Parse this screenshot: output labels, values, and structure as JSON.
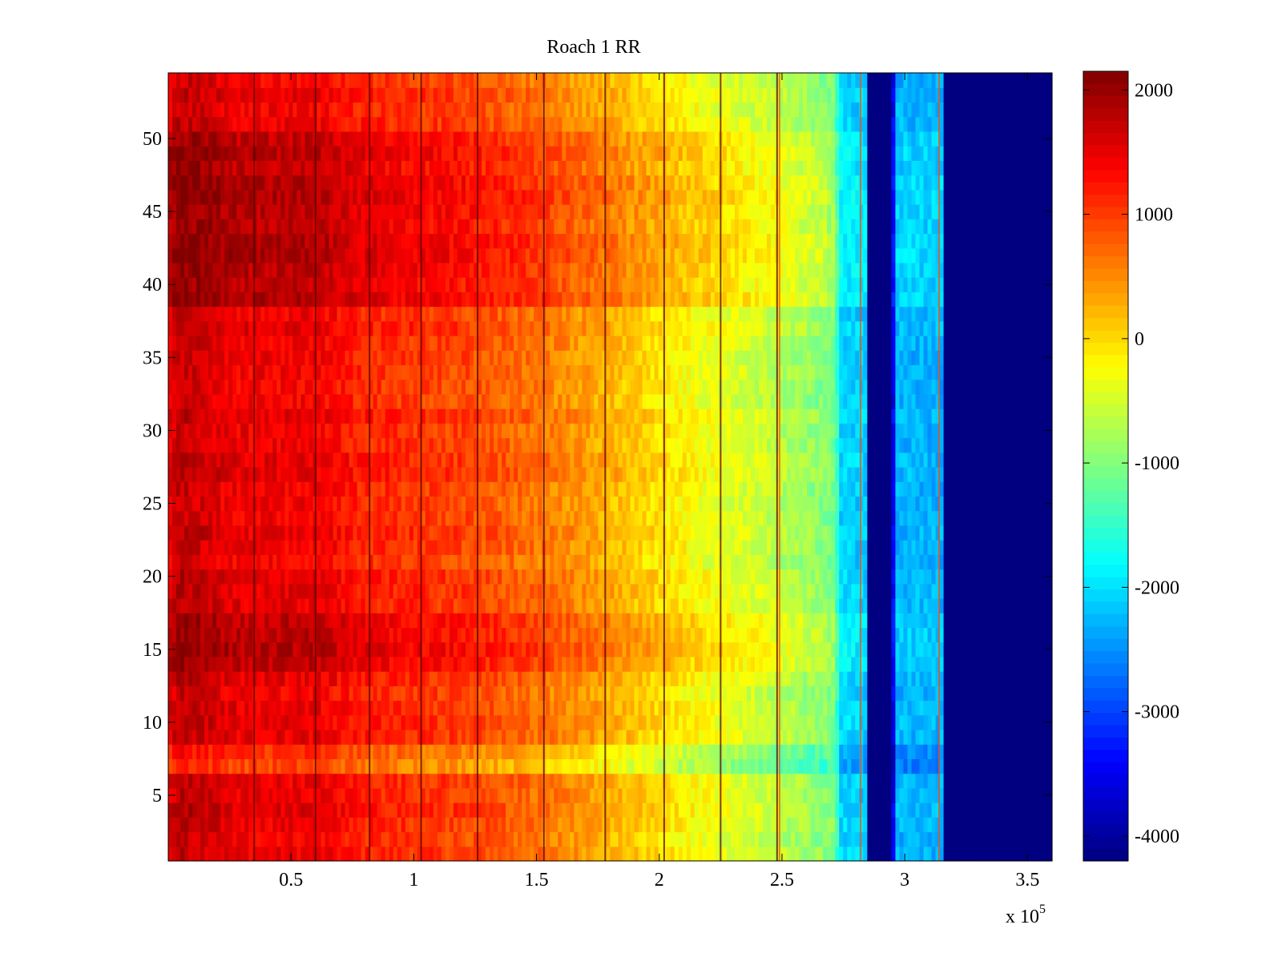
{
  "chart_data": {
    "type": "heatmap",
    "title": "Roach 1 RR",
    "xlabel": "",
    "ylabel": "",
    "x_exponent_label": "x 10",
    "x_exponent_power": "5",
    "xlim": [
      0,
      3.6
    ],
    "ylim": [
      0.5,
      54.5
    ],
    "x_ticks": [
      0.5,
      1,
      1.5,
      2,
      2.5,
      3,
      3.5
    ],
    "x_tick_labels": [
      "0.5",
      "1",
      "1.5",
      "2",
      "2.5",
      "3",
      "3.5"
    ],
    "y_ticks": [
      5,
      10,
      15,
      20,
      25,
      30,
      35,
      40,
      45,
      50
    ],
    "y_tick_labels": [
      "5",
      "10",
      "15",
      "20",
      "25",
      "30",
      "35",
      "40",
      "45",
      "50"
    ],
    "colorbar": {
      "colormap": "jet",
      "range": [
        -4200,
        2150
      ],
      "ticks": [
        2000,
        1000,
        0,
        -1000,
        -2000,
        -3000,
        -4000
      ],
      "tick_labels": [
        "2000",
        "1000",
        "0",
        "-1000",
        "-2000",
        "-3000",
        "-4000"
      ]
    },
    "rows": 54,
    "column_profile": [
      {
        "x": 0.0,
        "value": 1500
      },
      {
        "x": 0.05,
        "value": 1750
      },
      {
        "x": 0.3,
        "value": 1450
      },
      {
        "x": 0.6,
        "value": 1450
      },
      {
        "x": 0.8,
        "value": 1150
      },
      {
        "x": 1.2,
        "value": 950
      },
      {
        "x": 1.5,
        "value": 650
      },
      {
        "x": 1.8,
        "value": 250
      },
      {
        "x": 2.1,
        "value": -200
      },
      {
        "x": 2.45,
        "value": -600
      },
      {
        "x": 2.72,
        "value": -1050
      },
      {
        "x": 2.73,
        "value": -2050
      },
      {
        "x": 2.84,
        "value": -2150
      },
      {
        "x": 2.85,
        "value": -4200
      },
      {
        "x": 2.95,
        "value": -4200
      },
      {
        "x": 2.96,
        "value": -2300
      },
      {
        "x": 3.15,
        "value": -2300
      },
      {
        "x": 3.16,
        "value": -4200
      },
      {
        "x": 3.6,
        "value": -4200
      }
    ],
    "hot_rows": [
      14,
      15,
      16,
      17,
      39,
      40,
      41,
      42,
      43,
      44,
      45,
      46,
      47,
      48,
      49,
      50
    ],
    "cool_rows": [
      7,
      8
    ],
    "dark_streaks_x": [
      0.35,
      0.6,
      0.82,
      1.03,
      1.26,
      1.53,
      1.78,
      2.02,
      2.25,
      2.48
    ],
    "bright_streaks_x": [
      2.49,
      2.82,
      3.14
    ]
  }
}
